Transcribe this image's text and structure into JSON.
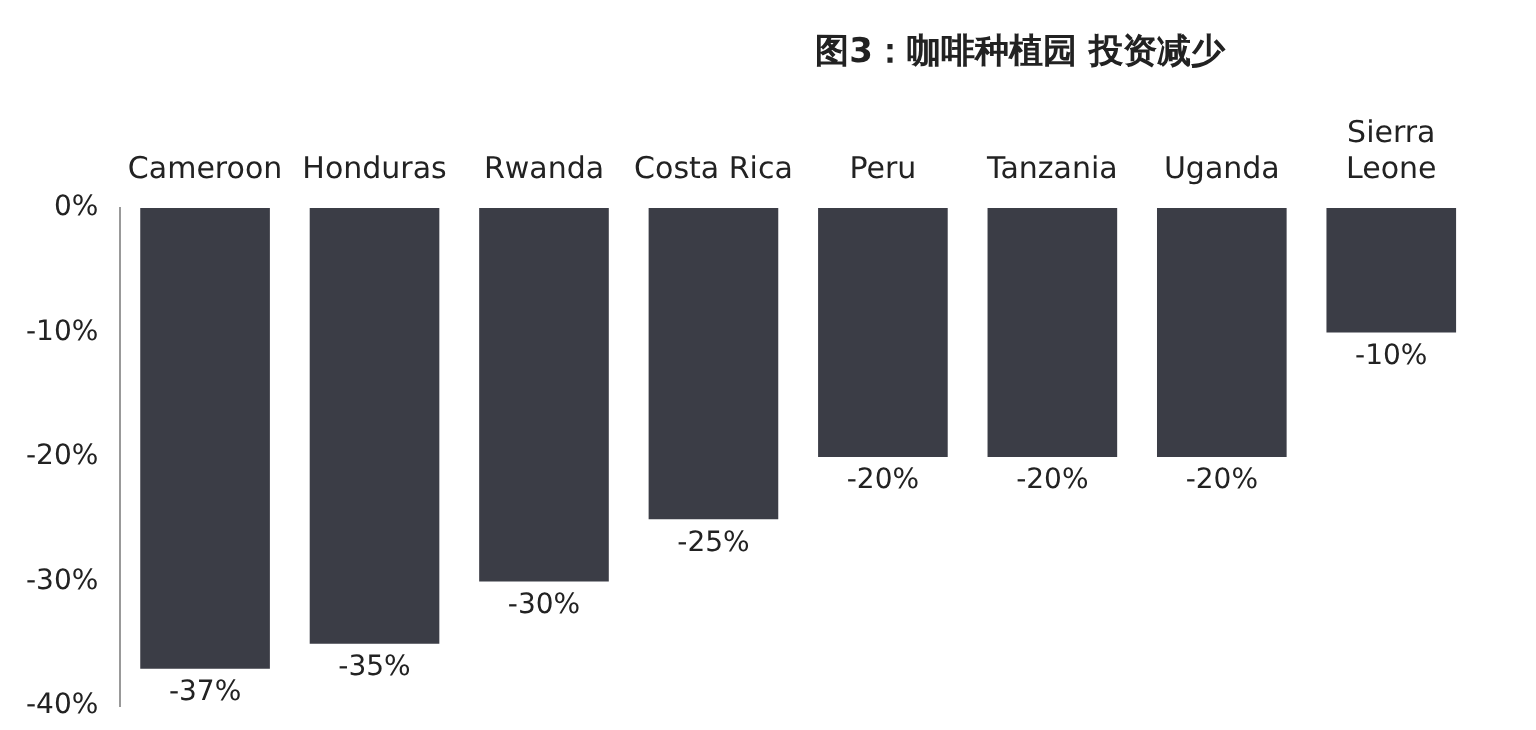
{
  "chart_data": {
    "type": "bar",
    "title": "图3：咖啡种植园 投资减少",
    "categories": [
      "Cameroon",
      "Honduras",
      "Rwanda",
      "Costa Rica",
      "Peru",
      "Tanzania",
      "Uganda",
      "Sierra Leone"
    ],
    "values": [
      -37,
      -35,
      -30,
      -25,
      -20,
      -20,
      -20,
      -10
    ],
    "value_labels": [
      "-37%",
      "-35%",
      "-30%",
      "-25%",
      "-20%",
      "-20%",
      "-20%",
      "-10%"
    ],
    "color": "#3b3d46",
    "ylim": [
      -40,
      0
    ],
    "yticks": [
      {
        "value": 0,
        "label": "0%"
      },
      {
        "value": -10,
        "label": "-10%"
      },
      {
        "value": -20,
        "label": "-20%"
      },
      {
        "value": -30,
        "label": "-30%"
      },
      {
        "value": -40,
        "label": "-40%"
      }
    ],
    "grid": false,
    "legend": false
  }
}
